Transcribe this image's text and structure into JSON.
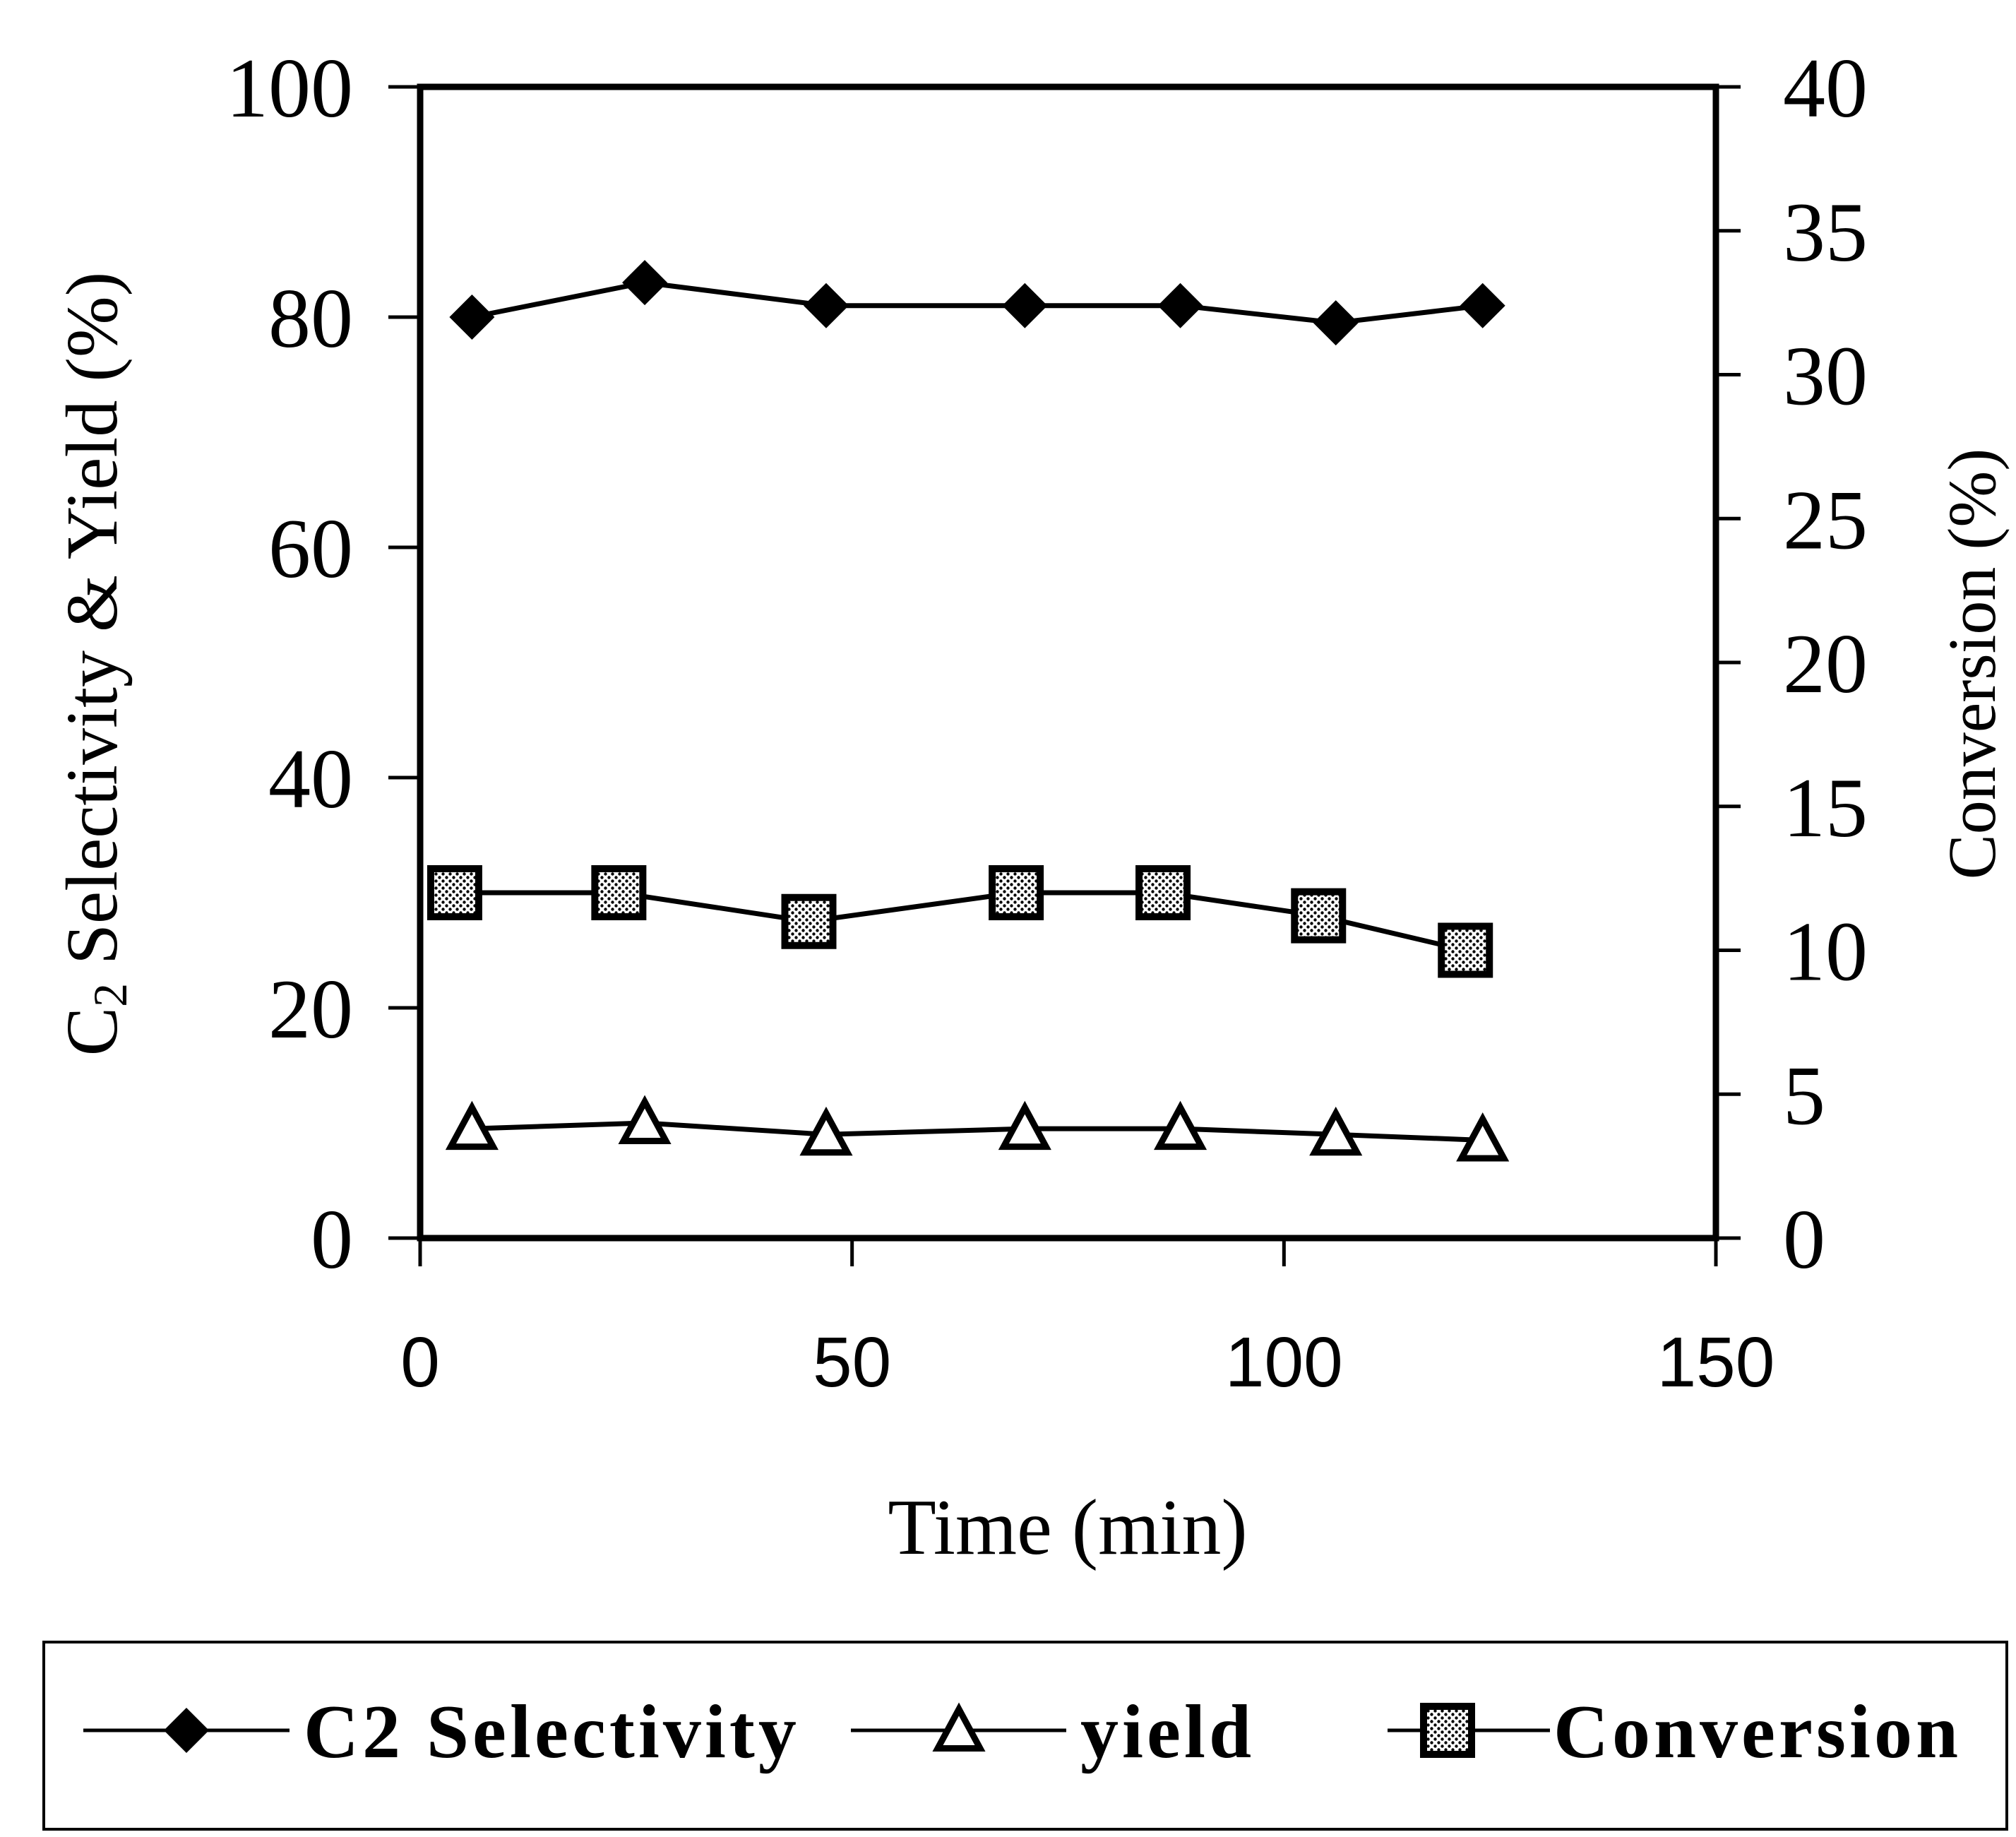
{
  "chart_data": {
    "type": "line",
    "xlabel": "Time (min)",
    "ylabel_left": {
      "prefix": "C",
      "subscript": "2",
      "rest": " Selectivity & Yield (%)"
    },
    "ylabel_right": "Conversion (%)",
    "xlim": [
      0,
      150
    ],
    "ylim_left": [
      0,
      100
    ],
    "ylim_right": [
      0,
      40
    ],
    "x_ticks": [
      0,
      50,
      100,
      150
    ],
    "x_tick_labels": [
      "0",
      "50",
      "100",
      "150"
    ],
    "y_left_ticks": [
      0,
      20,
      40,
      60,
      80,
      100
    ],
    "y_left_tick_labels": [
      "0",
      "20",
      "40",
      "60",
      "80",
      "100"
    ],
    "y_right_ticks": [
      0,
      5,
      10,
      15,
      20,
      25,
      30,
      35,
      40
    ],
    "y_right_tick_labels": [
      "0",
      "5",
      "10",
      "15",
      "20",
      "25",
      "30",
      "35",
      "40"
    ],
    "grid": false,
    "legend_position": "bottom",
    "series": [
      {
        "name": "C2 Selectivity",
        "axis": "left",
        "marker": "diamond",
        "x": [
          6,
          26,
          47,
          70,
          88,
          106,
          123
        ],
        "y": [
          80,
          83,
          81,
          81,
          81,
          79.5,
          81
        ]
      },
      {
        "name": "yield",
        "axis": "left",
        "marker": "triangle",
        "x": [
          6,
          26,
          47,
          70,
          88,
          106,
          123
        ],
        "y": [
          9.5,
          10,
          9,
          9.5,
          9.5,
          9,
          8.5
        ]
      },
      {
        "name": "Conversion",
        "axis": "right",
        "marker": "hatched-square",
        "x": [
          4,
          23,
          45,
          69,
          86,
          104,
          121
        ],
        "y": [
          12,
          12,
          11,
          12,
          12,
          11.2,
          10
        ]
      }
    ]
  }
}
